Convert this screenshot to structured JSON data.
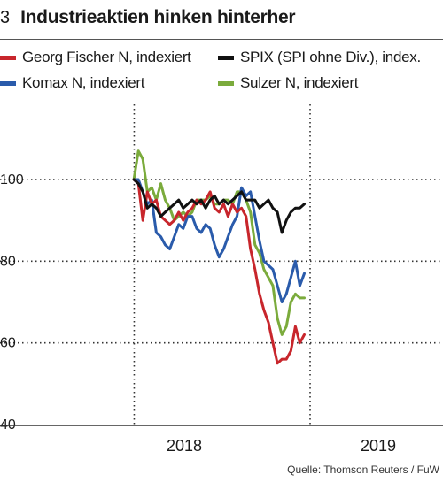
{
  "figure": {
    "number": "3",
    "title": "Industrieaktien hinken hinterher",
    "source": "Quelle: Thomson Reuters / FuW"
  },
  "chart_data": {
    "type": "line",
    "title": "Industrieaktien hinken hinterher",
    "xlabel": "",
    "ylabel": "",
    "ylim": [
      40,
      110
    ],
    "y_ticks": [
      40,
      60,
      80,
      100
    ],
    "y_tick_labels": [
      "40",
      "60",
      "80",
      "100"
    ],
    "x_ticks": [
      "2018",
      "2019"
    ],
    "x_range": [
      "2017-05",
      "2019-03"
    ],
    "grid": "dotted",
    "legend_placement": "top",
    "x": [
      "2017-06-30",
      "2017-07-14",
      "2017-07-28",
      "2017-08-11",
      "2017-08-25",
      "2017-09-08",
      "2017-09-22",
      "2017-10-06",
      "2017-10-20",
      "2017-11-03",
      "2017-11-17",
      "2017-12-01",
      "2017-12-15",
      "2017-12-29",
      "2018-01-12",
      "2018-01-26",
      "2018-02-09",
      "2018-02-23",
      "2018-03-09",
      "2018-03-23",
      "2018-04-06",
      "2018-04-20",
      "2018-05-04",
      "2018-05-18",
      "2018-06-01",
      "2018-06-15",
      "2018-06-29",
      "2018-07-13",
      "2018-07-27",
      "2018-08-10",
      "2018-08-24",
      "2018-09-07",
      "2018-09-21",
      "2018-10-05",
      "2018-10-19",
      "2018-11-02",
      "2018-11-16",
      "2018-11-30",
      "2018-12-14"
    ],
    "series": [
      {
        "name": "Georg Fischer N, indexiert",
        "color": "#c8262c",
        "values": [
          100,
          99,
          90,
          97,
          94,
          95,
          91,
          90,
          89,
          90,
          92,
          90,
          92,
          93,
          95,
          94,
          95,
          97,
          93,
          92,
          94,
          91,
          94,
          92,
          93,
          91,
          83,
          78,
          72,
          68,
          65,
          60,
          55,
          56,
          56,
          58,
          64,
          60,
          62
        ]
      },
      {
        "name": "SPIX (SPI ohne Div.), index.",
        "color": "#111111",
        "values": [
          100,
          99,
          97,
          93,
          94,
          93,
          91,
          92,
          93,
          94,
          95,
          93,
          94,
          95,
          94,
          95,
          93,
          95,
          96,
          94,
          95,
          94,
          95,
          96,
          97,
          95,
          95,
          95,
          93,
          94,
          95,
          93,
          92,
          87,
          90,
          92,
          93,
          93,
          94
        ]
      },
      {
        "name": "Komax N, indexiert",
        "color": "#2a5bab",
        "values": [
          100,
          100,
          97,
          94,
          95,
          87,
          86,
          84,
          83,
          86,
          89,
          88,
          91,
          91,
          88,
          87,
          89,
          88,
          84,
          81,
          83,
          86,
          89,
          91,
          98,
          96,
          97,
          91,
          85,
          80,
          79,
          78,
          74,
          70,
          72,
          76,
          80,
          74,
          77
        ]
      },
      {
        "name": "Sulzer N, indexiert",
        "color": "#7bab3c",
        "values": [
          100,
          107,
          105,
          97,
          98,
          95,
          99,
          95,
          93,
          90,
          91,
          92,
          91,
          92,
          95,
          95,
          95,
          96,
          94,
          94,
          95,
          95,
          94,
          97,
          97,
          95,
          92,
          84,
          82,
          78,
          76,
          74,
          66,
          62,
          64,
          70,
          72,
          71,
          71
        ]
      }
    ]
  }
}
